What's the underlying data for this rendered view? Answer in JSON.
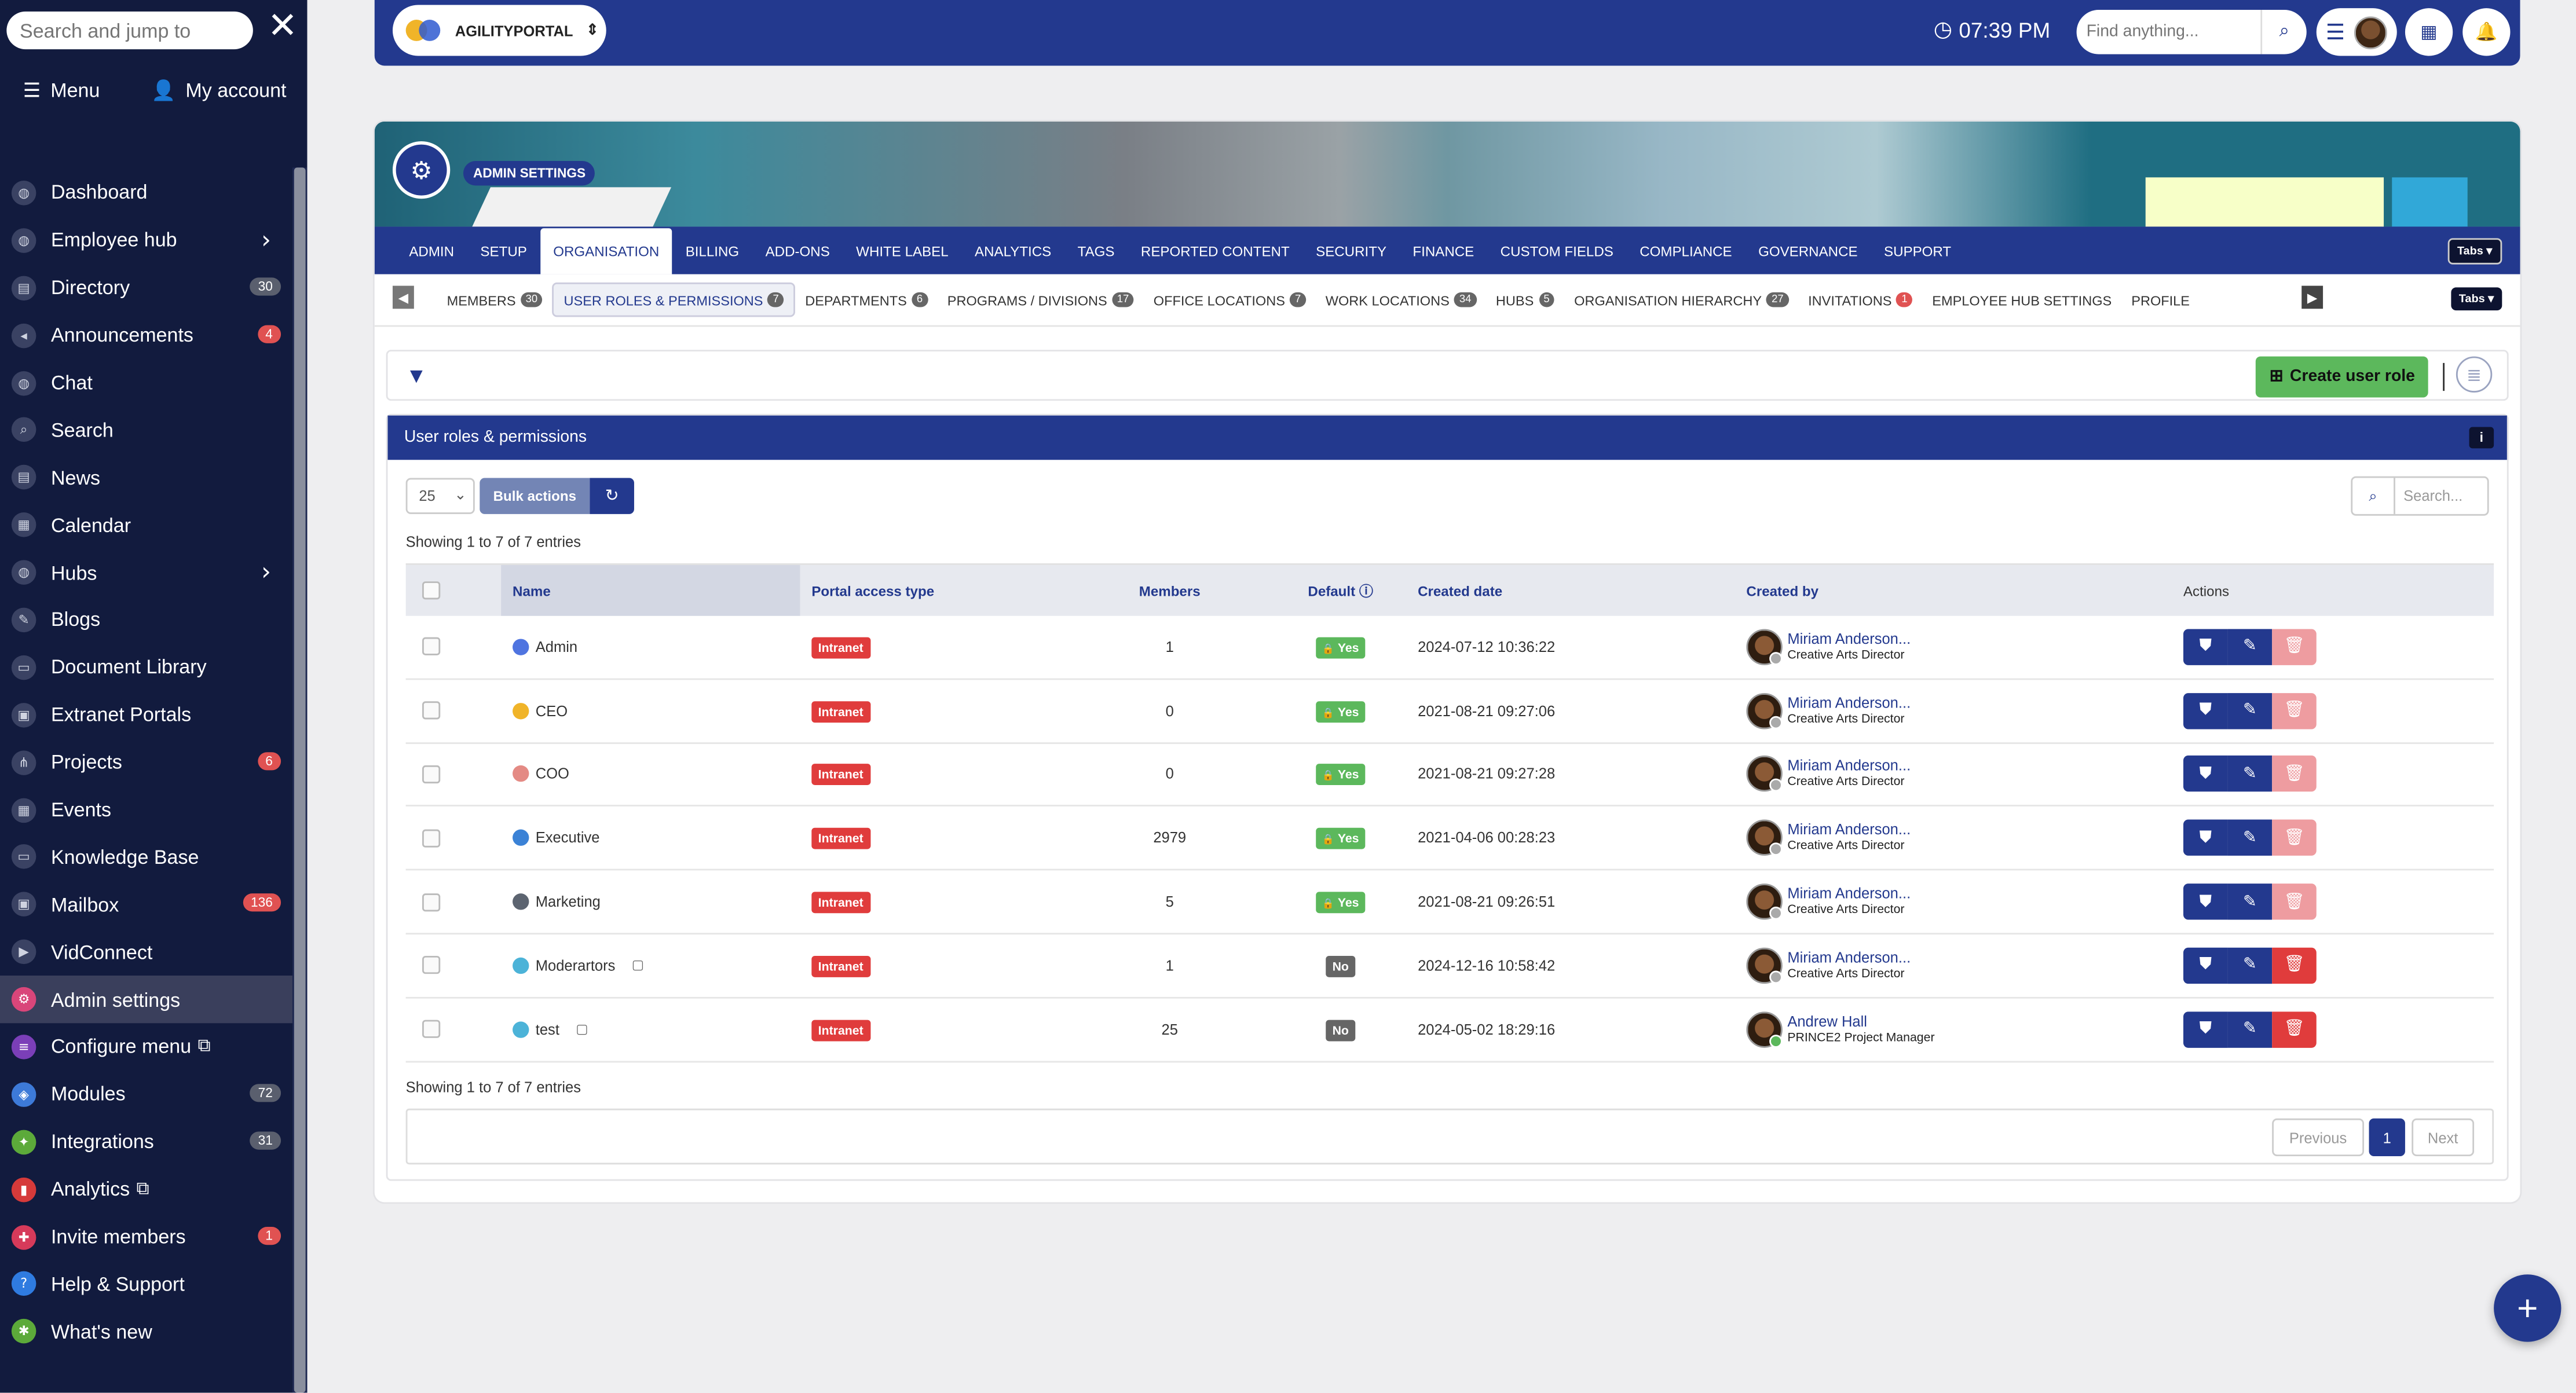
{
  "sidebar": {
    "search_placeholder": "Search and jump to",
    "menu_label": "Menu",
    "account_label": "My account",
    "items": [
      {
        "label": "Dashboard",
        "icon": "dashboard-icon",
        "glyph": "◍",
        "color": "#3a4263"
      },
      {
        "label": "Employee hub",
        "icon": "users-icon",
        "glyph": "◍",
        "color": "#3a4263",
        "chevron": "›"
      },
      {
        "label": "Directory",
        "icon": "directory-icon",
        "glyph": "▤",
        "color": "#3a4263",
        "badge": "30"
      },
      {
        "label": "Announcements",
        "icon": "megaphone-icon",
        "glyph": "◂",
        "color": "#3a4263",
        "badge": "4",
        "badge_red": true
      },
      {
        "label": "Chat",
        "icon": "chat-icon",
        "glyph": "◍",
        "color": "#3a4263"
      },
      {
        "label": "Search",
        "icon": "search-icon",
        "glyph": "⌕",
        "color": "#3a4263"
      },
      {
        "label": "News",
        "icon": "news-icon",
        "glyph": "▤",
        "color": "#3a4263"
      },
      {
        "label": "Calendar",
        "icon": "calendar-icon",
        "glyph": "▦",
        "color": "#3a4263"
      },
      {
        "label": "Hubs",
        "icon": "hubs-icon",
        "glyph": "◍",
        "color": "#3a4263",
        "chevron": "›"
      },
      {
        "label": "Blogs",
        "icon": "blog-icon",
        "glyph": "✎",
        "color": "#3a4263"
      },
      {
        "label": "Document Library",
        "icon": "folder-icon",
        "glyph": "▭",
        "color": "#3a4263"
      },
      {
        "label": "Extranet Portals",
        "icon": "portal-icon",
        "glyph": "▣",
        "color": "#3a4263"
      },
      {
        "label": "Projects",
        "icon": "projects-icon",
        "glyph": "⋔",
        "color": "#3a4263",
        "badge": "6",
        "badge_red": true
      },
      {
        "label": "Events",
        "icon": "events-icon",
        "glyph": "▦",
        "color": "#3a4263"
      },
      {
        "label": "Knowledge Base",
        "icon": "knowledge-icon",
        "glyph": "▭",
        "color": "#3a4263"
      },
      {
        "label": "Mailbox",
        "icon": "mailbox-icon",
        "glyph": "▣",
        "color": "#3a4263",
        "badge": "136",
        "badge_red": true
      },
      {
        "label": "VidConnect",
        "icon": "video-icon",
        "glyph": "▶",
        "color": "#3a4263"
      },
      {
        "label": "Admin settings",
        "icon": "admin-settings-icon",
        "glyph": "⚙",
        "color": "#d9467a",
        "active": true
      },
      {
        "label": "Configure menu",
        "icon": "configure-menu-icon",
        "glyph": "≡",
        "color": "#7b3fb8",
        "ext": "⧉"
      },
      {
        "label": "Modules",
        "icon": "modules-icon",
        "glyph": "◈",
        "color": "#3d7ad8",
        "badge": "72"
      },
      {
        "label": "Integrations",
        "icon": "integrations-icon",
        "glyph": "✦",
        "color": "#5caa3a",
        "badge": "31"
      },
      {
        "label": "Analytics",
        "icon": "analytics-icon",
        "glyph": "▮",
        "color": "#d63a3a",
        "ext": "⧉"
      },
      {
        "label": "Invite members",
        "icon": "invite-icon",
        "glyph": "✚",
        "color": "#d63a5a",
        "badge": "1",
        "badge_red": true
      },
      {
        "label": "Help & Support",
        "icon": "help-icon",
        "glyph": "?",
        "color": "#2f7be0"
      },
      {
        "label": "What's new",
        "icon": "whats-new-icon",
        "glyph": "✱",
        "color": "#5caa3a"
      }
    ]
  },
  "topbar": {
    "portal_name": "AGILITYPORTAL",
    "time": "07:39 PM",
    "find_placeholder": "Find anything..."
  },
  "admin": {
    "label": "ADMIN SETTINGS",
    "tabs_button": "Tabs ▾",
    "main_tabs": [
      "ADMIN",
      "SETUP",
      "ORGANISATION",
      "BILLING",
      "ADD-ONS",
      "WHITE LABEL",
      "ANALYTICS",
      "TAGS",
      "REPORTED CONTENT",
      "SECURITY",
      "FINANCE",
      "CUSTOM FIELDS",
      "COMPLIANCE",
      "GOVERNANCE",
      "SUPPORT"
    ],
    "active_main_tab": 2,
    "sub_tabs": [
      {
        "label": "MEMBERS",
        "count": "30"
      },
      {
        "label": "USER ROLES & PERMISSIONS",
        "count": "7",
        "active": true
      },
      {
        "label": "DEPARTMENTS",
        "count": "6"
      },
      {
        "label": "PROGRAMS / DIVISIONS",
        "count": "17"
      },
      {
        "label": "OFFICE LOCATIONS",
        "count": "7"
      },
      {
        "label": "WORK LOCATIONS",
        "count": "34"
      },
      {
        "label": "HUBS",
        "count": "5"
      },
      {
        "label": "ORGANISATION HIERARCHY",
        "count": "27"
      },
      {
        "label": "INVITATIONS",
        "count": "1",
        "red": true
      },
      {
        "label": "EMPLOYEE HUB SETTINGS"
      },
      {
        "label": "PROFILE"
      }
    ]
  },
  "toolbar": {
    "create_label": "Create user role"
  },
  "panel": {
    "title": "User roles & permissions",
    "page_size": "25",
    "bulk_label": "Bulk actions",
    "search_placeholder": "Search...",
    "showing_top": "Showing 1 to 7 of 7 entries",
    "showing_bottom": "Showing 1 to 7 of 7 entries",
    "columns": {
      "name": "Name",
      "portal": "Portal access type",
      "members": "Members",
      "default": "Default",
      "created": "Created date",
      "by": "Created by",
      "actions": "Actions"
    },
    "rows": [
      {
        "name": "Admin",
        "color": "#4f74e0",
        "portal": "Intranet",
        "members": "1",
        "default": "Yes",
        "created": "2024-07-12 10:36:22",
        "by_name": "Miriam Anderson...",
        "by_role": "Creative Arts Director",
        "delete_enabled": false
      },
      {
        "name": "CEO",
        "color": "#f0b429",
        "portal": "Intranet",
        "members": "0",
        "default": "Yes",
        "created": "2021-08-21 09:27:06",
        "by_name": "Miriam Anderson...",
        "by_role": "Creative Arts Director",
        "delete_enabled": false
      },
      {
        "name": "COO",
        "color": "#e48a84",
        "portal": "Intranet",
        "members": "0",
        "default": "Yes",
        "created": "2021-08-21 09:27:28",
        "by_name": "Miriam Anderson...",
        "by_role": "Creative Arts Director",
        "delete_enabled": false
      },
      {
        "name": "Executive",
        "color": "#3b82d6",
        "portal": "Intranet",
        "members": "2979",
        "default": "Yes",
        "created": "2021-04-06 00:28:23",
        "by_name": "Miriam Anderson...",
        "by_role": "Creative Arts Director",
        "delete_enabled": false
      },
      {
        "name": "Marketing",
        "color": "#5c6470",
        "portal": "Intranet",
        "members": "5",
        "default": "Yes",
        "created": "2021-08-21 09:26:51",
        "by_name": "Miriam Anderson...",
        "by_role": "Creative Arts Director",
        "delete_enabled": false
      },
      {
        "name": "Moderartors",
        "color": "#4cb3d8",
        "portal": "Intranet",
        "members": "1",
        "default": "No",
        "created": "2024-12-16 10:58:42",
        "by_name": "Miriam Anderson...",
        "by_role": "Creative Arts Director",
        "delete_enabled": true,
        "note": true
      },
      {
        "name": "test",
        "color": "#4cb3d8",
        "portal": "Intranet",
        "members": "25",
        "default": "No",
        "created": "2024-05-02 18:29:16",
        "by_name": "Andrew Hall",
        "by_role": "PRINCE2 Project Manager",
        "delete_enabled": true,
        "note": true,
        "online": true
      }
    ],
    "pager": {
      "previous": "Previous",
      "current": "1",
      "next": "Next"
    }
  }
}
